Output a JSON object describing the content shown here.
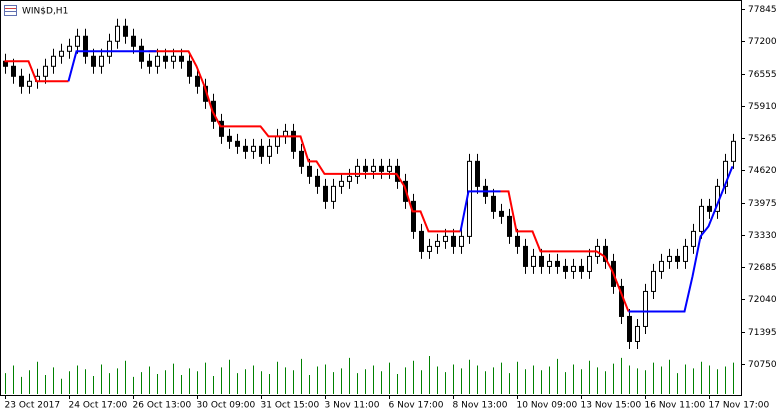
{
  "chart_data": {
    "type": "candlestick",
    "title": "WIN$D,H1",
    "categories": [
      "23 Oct 2017",
      null,
      null,
      null,
      null,
      null,
      null,
      null,
      "24 Oct 17:00",
      null,
      null,
      null,
      null,
      null,
      null,
      null,
      "26 Oct 13:00",
      null,
      null,
      null,
      null,
      null,
      null,
      null,
      "30 Oct 09:00",
      null,
      null,
      null,
      null,
      null,
      null,
      null,
      "31 Oct 15:00",
      null,
      null,
      null,
      null,
      null,
      null,
      null,
      "3 Nov 11:00",
      null,
      null,
      null,
      null,
      null,
      null,
      null,
      "6 Nov 17:00",
      null,
      null,
      null,
      null,
      null,
      null,
      null,
      "8 Nov 13:00",
      null,
      null,
      null,
      null,
      null,
      null,
      null,
      "10 Nov 09:00",
      null,
      null,
      null,
      null,
      null,
      null,
      null,
      "13 Nov 15:00",
      null,
      null,
      null,
      null,
      null,
      null,
      null,
      "16 Nov 11:00",
      null,
      null,
      null,
      null,
      null,
      null,
      null,
      "17 Nov 17:00",
      null,
      null,
      null
    ],
    "open": [
      76800,
      76700,
      76500,
      76300,
      76400,
      76500,
      76700,
      76900,
      77000,
      77100,
      77300,
      76900,
      76700,
      76900,
      77200,
      77500,
      77300,
      77100,
      76800,
      76700,
      76900,
      76800,
      76900,
      76800,
      76500,
      76300,
      76000,
      75600,
      75300,
      75200,
      75100,
      75000,
      75100,
      74900,
      75100,
      75300,
      75400,
      75000,
      74700,
      74500,
      74300,
      74000,
      74300,
      74400,
      74500,
      74700,
      74600,
      74700,
      74600,
      74700,
      74400,
      74000,
      73400,
      73000,
      73100,
      73200,
      73300,
      73100,
      73300,
      74800,
      74300,
      74100,
      73800,
      73700,
      73300,
      73100,
      72700,
      72900,
      72700,
      72800,
      72700,
      72600,
      72700,
      72600,
      72900,
      73100,
      72800,
      72300,
      71700,
      71200,
      71500,
      72200,
      72600,
      72800,
      72900,
      72800,
      73100,
      73400,
      73900,
      73800,
      74300,
      74800
    ],
    "high": [
      76950,
      76850,
      76650,
      76550,
      76650,
      76850,
      77050,
      77150,
      77250,
      77450,
      77450,
      77050,
      77050,
      77350,
      77650,
      77650,
      77450,
      77250,
      76950,
      77050,
      77050,
      77050,
      77050,
      76950,
      76650,
      76450,
      76150,
      75750,
      75450,
      75350,
      75250,
      75250,
      75250,
      75250,
      75450,
      75550,
      75550,
      75150,
      74850,
      74650,
      74450,
      74450,
      74550,
      74650,
      74850,
      74850,
      74850,
      74850,
      74850,
      74850,
      74550,
      74150,
      73550,
      73250,
      73350,
      73450,
      73450,
      73450,
      74950,
      74950,
      74450,
      74250,
      73950,
      73850,
      73450,
      73250,
      73050,
      73050,
      72950,
      72950,
      72850,
      72850,
      72850,
      73050,
      73250,
      73250,
      72950,
      72450,
      71850,
      71650,
      72350,
      72750,
      72950,
      73050,
      73050,
      73250,
      73550,
      74050,
      74050,
      74450,
      74950,
      75350
    ],
    "low": [
      76550,
      76350,
      76150,
      76150,
      76250,
      76350,
      76550,
      76750,
      76850,
      76950,
      76750,
      76550,
      76550,
      76750,
      77050,
      77150,
      76950,
      76650,
      76550,
      76550,
      76650,
      76650,
      76650,
      76350,
      76150,
      75850,
      75450,
      75150,
      75050,
      74950,
      74850,
      74850,
      74750,
      74750,
      74950,
      75150,
      74850,
      74550,
      74350,
      74150,
      73850,
      73850,
      74150,
      74250,
      74350,
      74450,
      74450,
      74450,
      74450,
      74250,
      73850,
      73250,
      72850,
      72850,
      72950,
      73050,
      72950,
      72950,
      73150,
      74150,
      73950,
      73650,
      73550,
      73150,
      72950,
      72550,
      72550,
      72550,
      72550,
      72550,
      72450,
      72450,
      72450,
      72450,
      72750,
      72650,
      72150,
      71550,
      71050,
      71050,
      71350,
      72050,
      72450,
      72650,
      72650,
      72650,
      72950,
      73250,
      73650,
      73650,
      74150,
      74650
    ],
    "close": [
      76700,
      76500,
      76300,
      76400,
      76500,
      76700,
      76900,
      77000,
      77100,
      77300,
      76900,
      76700,
      76900,
      77200,
      77500,
      77300,
      77100,
      76800,
      76700,
      76900,
      76800,
      76900,
      76800,
      76500,
      76300,
      76000,
      75600,
      75300,
      75200,
      75100,
      75000,
      75100,
      74900,
      75100,
      75300,
      75400,
      75000,
      74700,
      74500,
      74300,
      74000,
      74300,
      74400,
      74500,
      74700,
      74600,
      74700,
      74600,
      74700,
      74400,
      74000,
      73400,
      73000,
      73100,
      73200,
      73300,
      73100,
      73300,
      74800,
      74300,
      74100,
      73800,
      73700,
      73300,
      73100,
      72700,
      72900,
      72700,
      72800,
      72700,
      72600,
      72700,
      72600,
      72900,
      73100,
      72800,
      72300,
      71700,
      71200,
      71500,
      72200,
      72600,
      72800,
      72900,
      72800,
      73100,
      73400,
      73900,
      73800,
      74300,
      74800,
      75200
    ],
    "volume": [
      22,
      30,
      18,
      25,
      34,
      20,
      28,
      16,
      24,
      30,
      26,
      19,
      31,
      22,
      27,
      35,
      18,
      23,
      29,
      21,
      25,
      32,
      20,
      27,
      24,
      33,
      19,
      28,
      36,
      22,
      26,
      30,
      24,
      21,
      34,
      28,
      25,
      37,
      20,
      29,
      31,
      23,
      27,
      38,
      22,
      26,
      30,
      24,
      33,
      21,
      28,
      35,
      25,
      40,
      29,
      23,
      31,
      27,
      36,
      30,
      24,
      28,
      33,
      22,
      34,
      26,
      30,
      25,
      29,
      37,
      23,
      31,
      26,
      35,
      28,
      24,
      32,
      38,
      30,
      27,
      25,
      33,
      29,
      36,
      22,
      31,
      27,
      34,
      30,
      26,
      29,
      33
    ],
    "volume_color": "#008000",
    "series": [
      {
        "color": "#ff0000",
        "values": [
          76800,
          76800,
          76800,
          76800,
          76400,
          76400,
          76400,
          76400,
          76400,
          null,
          null,
          null,
          null,
          null,
          null,
          null,
          null,
          null,
          77000,
          77000,
          77000,
          77000,
          77000,
          77000,
          76700,
          76300,
          75800,
          75500,
          75500,
          75500,
          75500,
          75500,
          75500,
          75300,
          75300,
          75300,
          75300,
          75300,
          74800,
          74800,
          74550,
          74550,
          74550,
          74550,
          74550,
          74550,
          74550,
          74550,
          74550,
          74550,
          74300,
          73800,
          73800,
          73400,
          73400,
          73400,
          73400,
          73400,
          null,
          null,
          null,
          null,
          74200,
          74200,
          73400,
          73400,
          73400,
          73000,
          73000,
          73000,
          73000,
          73000,
          73000,
          73000,
          73000,
          72900,
          72600,
          72200,
          71800,
          null,
          null,
          null,
          null,
          null,
          null,
          null,
          null,
          null,
          null,
          null,
          null,
          null
        ]
      },
      {
        "color": "#0000ff",
        "values": [
          null,
          null,
          null,
          null,
          null,
          null,
          null,
          null,
          76400,
          77000,
          77000,
          77000,
          77000,
          77000,
          77000,
          77000,
          77000,
          77000,
          77000,
          77000,
          null,
          null,
          null,
          null,
          null,
          null,
          null,
          null,
          null,
          null,
          null,
          null,
          null,
          null,
          null,
          null,
          null,
          null,
          null,
          null,
          null,
          null,
          null,
          null,
          null,
          null,
          null,
          null,
          null,
          null,
          null,
          null,
          null,
          null,
          null,
          null,
          null,
          73400,
          74200,
          74200,
          74200,
          74200,
          74200,
          null,
          null,
          null,
          null,
          null,
          null,
          null,
          null,
          null,
          null,
          null,
          null,
          null,
          null,
          null,
          71800,
          71800,
          71800,
          71800,
          71800,
          71800,
          71800,
          71800,
          72500,
          73300,
          73500,
          73900,
          74300,
          74700
        ]
      }
    ],
    "ylim": [
      70130,
      78025
    ],
    "yticks": [
      77845,
      77200,
      76555,
      75910,
      75265,
      74620,
      73975,
      73330,
      72685,
      72040,
      71395,
      70750
    ]
  }
}
